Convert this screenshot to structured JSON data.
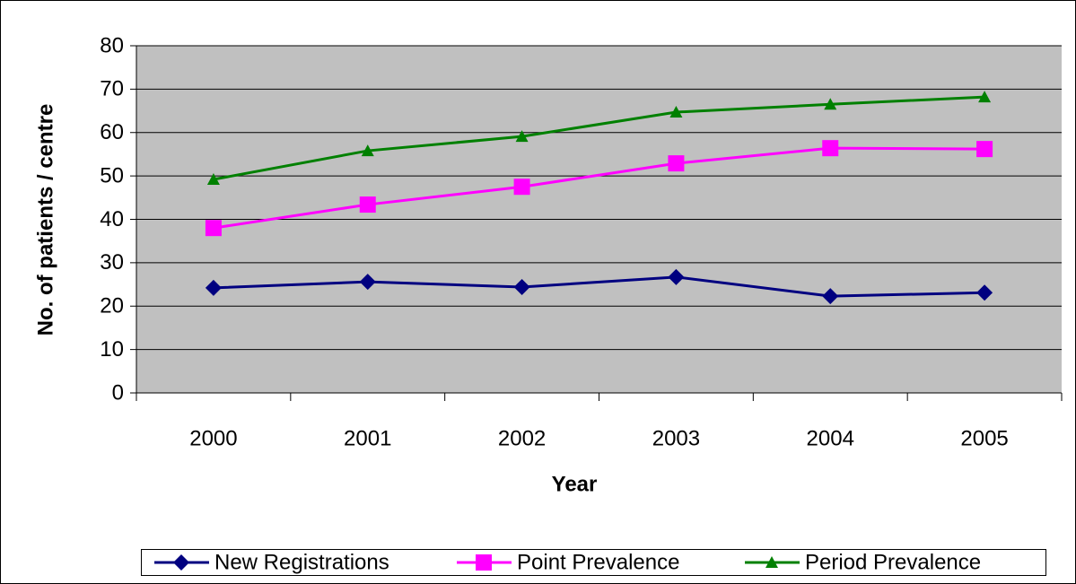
{
  "chart_data": {
    "type": "line",
    "x_label": "Year",
    "y_label": "No. of patients / centre",
    "categories": [
      "2000",
      "2001",
      "2002",
      "2003",
      "2004",
      "2005"
    ],
    "series": [
      {
        "name": "New Registrations",
        "color": "#000080",
        "marker": "diamond",
        "values": [
          24.2,
          25.6,
          24.4,
          26.7,
          22.3,
          23.1
        ]
      },
      {
        "name": "Point Prevalence",
        "color": "#ff00ff",
        "marker": "square",
        "values": [
          38.0,
          43.4,
          47.5,
          52.9,
          56.4,
          56.2
        ]
      },
      {
        "name": "Period Prevalence",
        "color": "#008000",
        "marker": "triangle",
        "values": [
          49.2,
          55.8,
          59.1,
          64.7,
          66.5,
          68.2
        ]
      }
    ],
    "ylim": [
      0,
      80
    ],
    "yticks": [
      0,
      10,
      20,
      30,
      40,
      50,
      60,
      70,
      80
    ],
    "grid": true,
    "plot_background": "#c0c0c0",
    "legend": "bottom"
  }
}
